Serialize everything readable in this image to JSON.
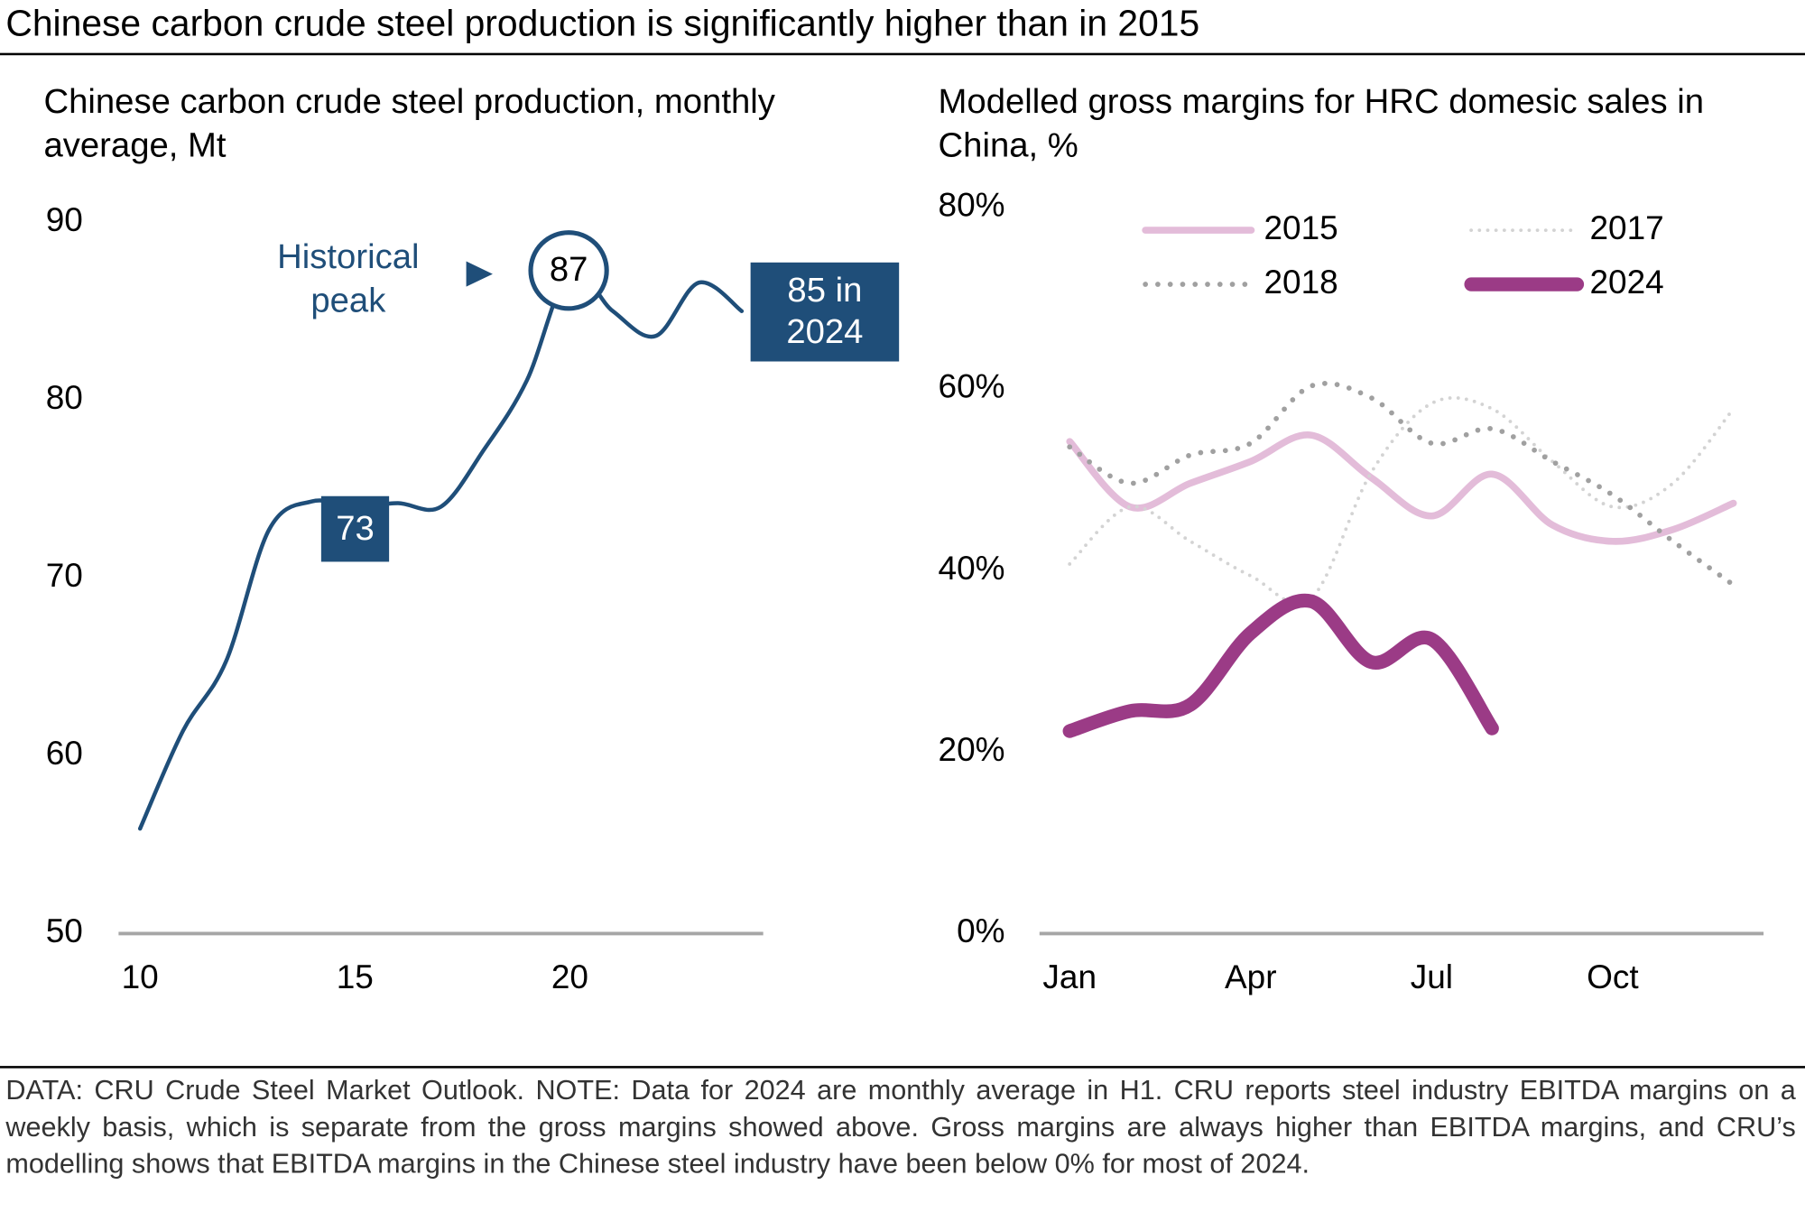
{
  "title": "Chinese carbon crude steel production is significantly higher than in 2015",
  "footnote": "DATA: CRU Crude Steel Market Outlook. NOTE: Data for 2024 are monthly average in H1. CRU reports steel industry EBITDA margins on a weekly basis, which is separate from the gross margins showed above. Gross margins are always higher than EBITDA margins, and CRU’s modelling shows that EBITDA margins in the Chinese steel industry have been below 0% for most of 2024.",
  "chart_data": [
    {
      "type": "line",
      "title": "Chinese carbon crude steel production, monthly average, Mt",
      "x": [
        10,
        11,
        12,
        13,
        14,
        15,
        16,
        17,
        18,
        19,
        20,
        21,
        22,
        23,
        24
      ],
      "values": [
        55.9,
        61.4,
        65.3,
        72.7,
        74.3,
        74,
        74.2,
        74,
        77.2,
        81.1,
        87.2,
        85,
        83.6,
        86.6,
        85
      ],
      "color": "#1f4e79",
      "xlim": [
        9.5,
        24.5
      ],
      "xticks": [
        10,
        15,
        20
      ],
      "ylim": [
        50,
        90
      ],
      "yticks": [
        50,
        60,
        70,
        80,
        90
      ],
      "annotations": [
        {
          "text": "Historical peak"
        },
        {
          "text": "87"
        },
        {
          "text": "73"
        },
        {
          "text": "85 in 2024"
        }
      ]
    },
    {
      "type": "line",
      "title": "Modelled gross margins for HRC domesic sales in China, %",
      "categories": [
        "Jan",
        null,
        null,
        "Apr",
        null,
        null,
        "Jul",
        null,
        null,
        "Oct",
        null,
        null
      ],
      "ylim": [
        0,
        80
      ],
      "yticks": [
        {
          "value": 0,
          "label": "0%"
        },
        {
          "value": 20,
          "label": "20%"
        },
        {
          "value": 40,
          "label": "40%"
        },
        {
          "value": 60,
          "label": "60%"
        },
        {
          "value": 80,
          "label": "80%"
        }
      ],
      "series": [
        {
          "name": "2015",
          "color": "#e3bcd9",
          "style": "solid",
          "line_width": 6,
          "values": [
            54.2,
            47,
            49.6,
            52,
            54.9,
            50.2,
            46,
            50.6,
            45,
            43.2,
            44.5,
            47.4
          ]
        },
        {
          "name": "2017",
          "color": "#d3d3d3",
          "style": "dotted",
          "line_width": 3,
          "values": [
            40.7,
            47,
            43.2,
            39.4,
            36.9,
            50.8,
            58.4,
            57.8,
            52,
            47,
            49.6,
            57.8
          ]
        },
        {
          "name": "2018",
          "color": "#a0a0a0",
          "style": "dotted",
          "line_width": 4.5,
          "values": [
            53.6,
            49.6,
            52.7,
            54,
            60.3,
            59,
            54,
            55.6,
            52,
            48.3,
            43.2,
            38.4
          ]
        },
        {
          "name": "2024",
          "color": "#9b3b86",
          "style": "solid",
          "line_width": 12,
          "values": [
            22.3,
            24.5,
            25.2,
            33.1,
            36.6,
            29.9,
            32.4,
            22.6,
            null,
            null,
            null,
            null
          ]
        }
      ]
    }
  ]
}
